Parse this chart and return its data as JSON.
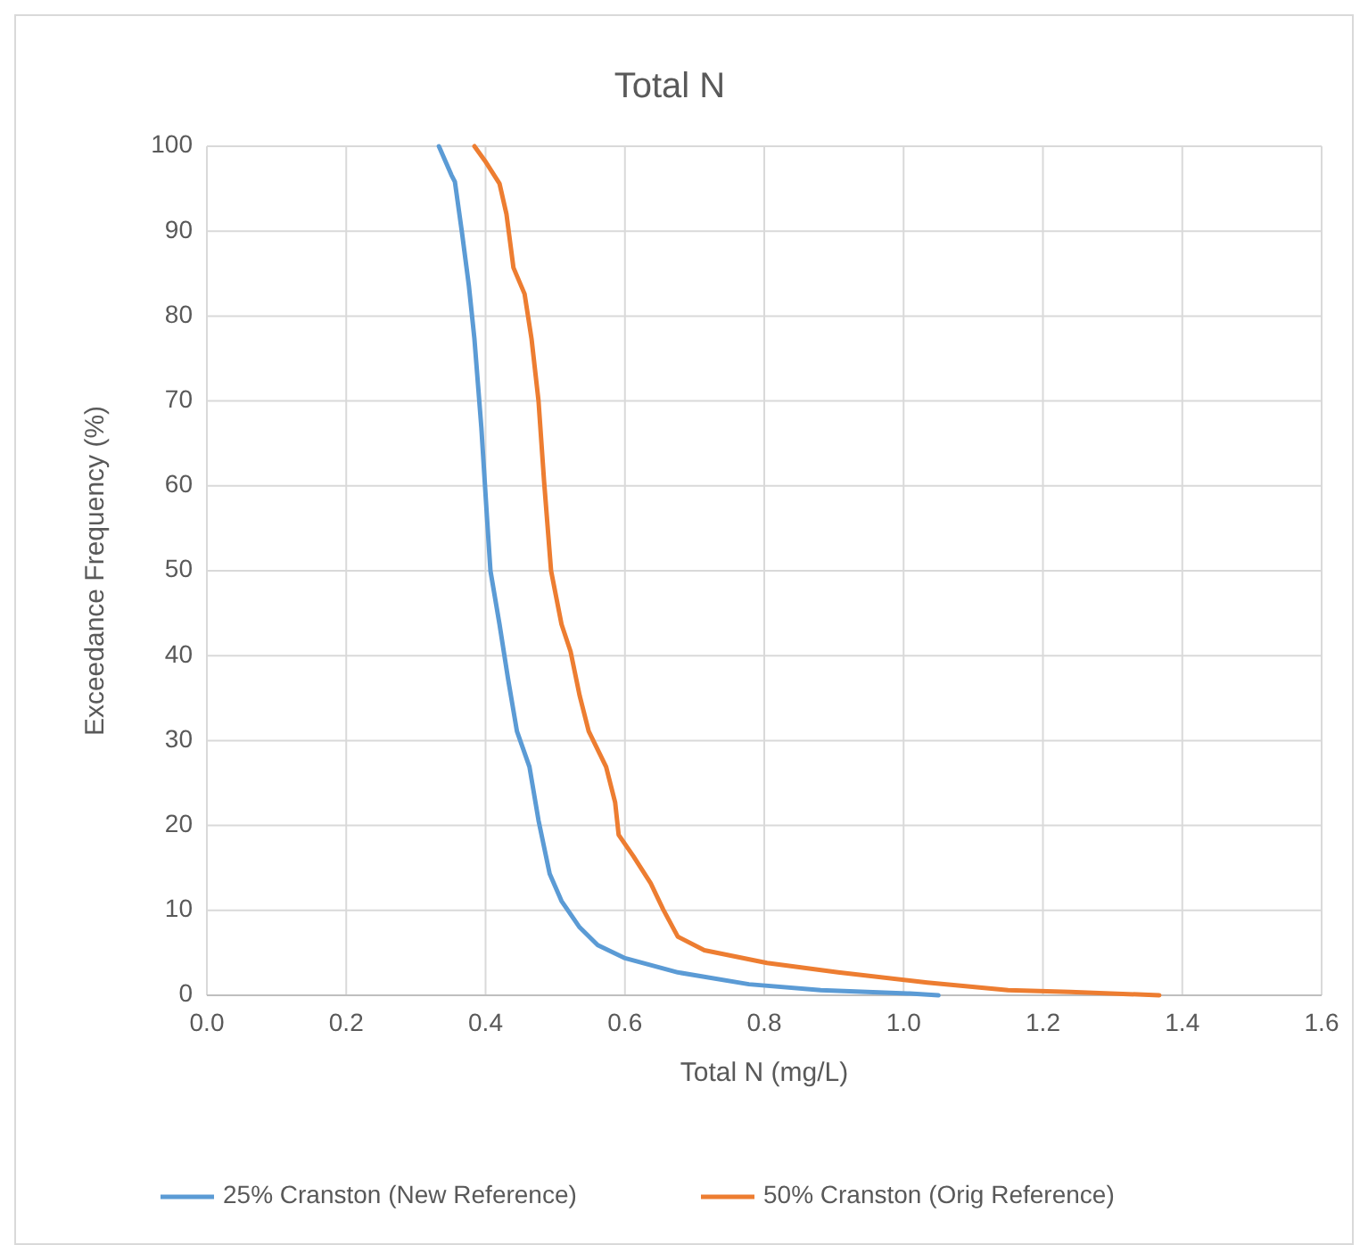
{
  "chart_data": {
    "type": "line",
    "title": "Total N",
    "xlabel": "Total N (mg/L)",
    "ylabel": "Exceedance Frequency (%)",
    "xlim": [
      0,
      1.6
    ],
    "xticks": [
      {
        "value": 0,
        "label": "0.0"
      },
      {
        "value": 0.2,
        "label": "0.2"
      },
      {
        "value": 0.4,
        "label": "0.4"
      },
      {
        "value": 0.6,
        "label": "0.6"
      },
      {
        "value": 0.8,
        "label": "0.8"
      },
      {
        "value": 1,
        "label": "1.0"
      },
      {
        "value": 1.2,
        "label": "1.2"
      },
      {
        "value": 1.4,
        "label": "1.4"
      },
      {
        "value": 1.6,
        "label": "1.6"
      }
    ],
    "ylim": [
      0,
      100
    ],
    "yticks": [
      0,
      10,
      20,
      30,
      40,
      50,
      60,
      70,
      80,
      90,
      100
    ],
    "grid": true,
    "legend": "bottom",
    "marker": "none",
    "line_style": "solid",
    "series": [
      {
        "name": "25% Cranston (New Reference)",
        "color": "#5b9bd5",
        "x": [
          0.333,
          0.351,
          0.356,
          0.366,
          0.376,
          0.384,
          0.394,
          0.402,
          0.407,
          0.42,
          0.432,
          0.445,
          0.463,
          0.476,
          0.492,
          0.509,
          0.535,
          0.561,
          0.599,
          0.676,
          0.778,
          0.881,
          1.009,
          1.05
        ],
        "values": [
          100,
          96.6,
          95.8,
          89.9,
          83.6,
          77.3,
          66.8,
          56.3,
          50,
          43.7,
          37.4,
          31.1,
          26.9,
          20.6,
          14.3,
          11.1,
          8,
          5.9,
          4.4,
          2.7,
          1.3,
          0.6,
          0.2,
          0
        ]
      },
      {
        "name": "50% Cranston (Orig Reference)",
        "color": "#ed7d31",
        "x": [
          0.384,
          0.399,
          0.42,
          0.43,
          0.44,
          0.456,
          0.466,
          0.476,
          0.484,
          0.494,
          0.509,
          0.522,
          0.535,
          0.548,
          0.573,
          0.586,
          0.591,
          0.612,
          0.637,
          0.655,
          0.676,
          0.714,
          0.804,
          0.906,
          1.034,
          1.15,
          1.239,
          1.367
        ],
        "values": [
          100,
          98.3,
          95.6,
          92,
          85.7,
          82.6,
          77.3,
          70,
          60.5,
          50,
          43.7,
          40.5,
          35.3,
          31.1,
          26.9,
          22.7,
          18.9,
          16.4,
          13.2,
          10.1,
          6.9,
          5.3,
          3.8,
          2.7,
          1.5,
          0.6,
          0.4,
          0
        ]
      }
    ]
  }
}
